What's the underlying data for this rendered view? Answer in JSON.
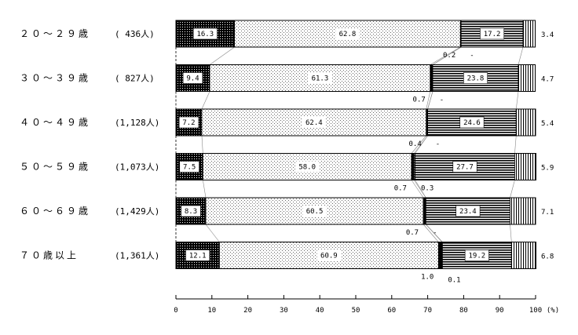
{
  "chart_data": {
    "type": "bar",
    "orientation": "horizontal",
    "stacked": true,
    "percent_scale": true,
    "categories": [
      "２０～２９歳",
      "３０～３９歳",
      "４０～４９歳",
      "５０～５９歳",
      "６０～６９歳",
      "７０歳以上"
    ],
    "counts": [
      "( 436人)",
      "( 827人)",
      "(1,128人)",
      "(1,073人)",
      "(1,429人)",
      "(1,361人)"
    ],
    "series": [
      {
        "values": [
          16.3,
          9.4,
          7.2,
          7.5,
          8.3,
          12.1
        ],
        "labels": [
          "16.3",
          "9.4",
          "7.2",
          "7.5",
          "8.3",
          "12.1"
        ],
        "pattern": "dense-dots"
      },
      {
        "values": [
          62.8,
          61.3,
          62.4,
          58.0,
          60.5,
          60.9
        ],
        "labels": [
          "62.8",
          "61.3",
          "62.4",
          "58.0",
          "60.5",
          "60.9"
        ],
        "pattern": "light-dots"
      },
      {
        "values": [
          0.2,
          0.7,
          0.4,
          0.7,
          0.7,
          1.0
        ],
        "labels": [
          "0.2",
          "0.7",
          "0.4",
          "0.7",
          "0.7",
          "1.0"
        ],
        "pattern": "black"
      },
      {
        "values": [
          0,
          0,
          0,
          0.3,
          0,
          0.1
        ],
        "labels": [
          "-",
          "-",
          "-",
          "0.3",
          "-",
          "0.1"
        ],
        "pattern": "grid"
      },
      {
        "values": [
          17.2,
          23.8,
          24.6,
          27.7,
          23.4,
          19.2
        ],
        "labels": [
          "17.2",
          "23.8",
          "24.6",
          "27.7",
          "23.4",
          "19.2"
        ],
        "pattern": "horizontal-lines"
      },
      {
        "values": [
          3.4,
          4.7,
          5.4,
          5.9,
          7.1,
          6.8
        ],
        "labels": [
          "3.4",
          "4.7",
          "5.4",
          "5.9",
          "7.1",
          "6.8"
        ],
        "pattern": "vertical-lines"
      }
    ],
    "x_ticks": [
      "0",
      "10",
      "20",
      "30",
      "40",
      "50",
      "60",
      "70",
      "80",
      "90",
      "100"
    ],
    "x_unit": "(%)",
    "xlim": [
      0,
      100
    ]
  }
}
